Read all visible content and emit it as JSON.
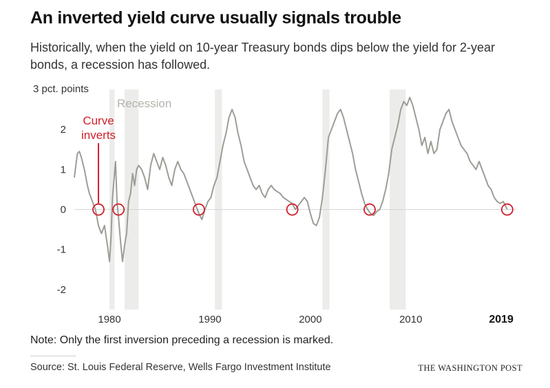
{
  "header": {
    "title": "An inverted yield curve usually signals trouble",
    "subtitle": "Historically, when the yield on 10-year Treasury bonds dips below the yield for 2-year bonds, a recession has followed."
  },
  "footer": {
    "note": "Note: Only the first inversion preceding a recession is marked.",
    "source": "Source: St. Louis Federal Reserve, Wells Fargo Investment Institute",
    "brand": "THE WASHINGTON POST"
  },
  "colors": {
    "line": "#9d9d97",
    "recession_band": "#ececea",
    "inversion_marker": "#d21f2a",
    "zero_line": "#d6d6d6",
    "recession_label": "#b3b3ad"
  },
  "chart_data": {
    "type": "line",
    "series": [
      {
        "x": [
          1976.5,
          1976.8,
          1977.0,
          1977.2,
          1977.5,
          1977.8,
          1978.0,
          1978.3,
          1978.6,
          1978.9,
          1979.2,
          1979.5,
          1979.8,
          1980.0,
          1980.15,
          1980.3,
          1980.5,
          1980.6,
          1980.75,
          1980.9,
          1981.1,
          1981.3,
          1981.5,
          1981.7,
          1981.9,
          1982.1,
          1982.3,
          1982.5,
          1982.7,
          1982.9,
          1983.2,
          1983.5,
          1983.8,
          1984.1,
          1984.4,
          1984.7,
          1985.0,
          1985.3,
          1985.6,
          1985.9,
          1986.2,
          1986.5,
          1986.8,
          1987.1,
          1987.4,
          1987.7,
          1988.0,
          1988.3,
          1988.6,
          1988.9,
          1989.2,
          1989.5,
          1989.8,
          1990.1,
          1990.4,
          1990.7,
          1991.0,
          1991.3,
          1991.6,
          1991.9,
          1992.2,
          1992.5,
          1992.8,
          1993.1,
          1993.4,
          1993.7,
          1994.0,
          1994.3,
          1994.6,
          1994.9,
          1995.2,
          1995.5,
          1995.8,
          1996.1,
          1996.4,
          1996.7,
          1997.0,
          1997.3,
          1997.6,
          1997.9,
          1998.2,
          1998.5,
          1998.8,
          1999.1,
          1999.4,
          1999.7,
          2000.0,
          2000.3,
          2000.6,
          2000.9,
          2001.2,
          2001.5,
          2001.8,
          2002.1,
          2002.4,
          2002.7,
          2003.0,
          2003.3,
          2003.6,
          2003.9,
          2004.2,
          2004.5,
          2004.8,
          2005.1,
          2005.4,
          2005.7,
          2006.0,
          2006.3,
          2006.6,
          2006.9,
          2007.2,
          2007.5,
          2007.8,
          2008.1,
          2008.4,
          2008.7,
          2009.0,
          2009.3,
          2009.6,
          2009.9,
          2010.2,
          2010.5,
          2010.8,
          2011.1,
          2011.4,
          2011.7,
          2012.0,
          2012.3,
          2012.6,
          2012.9,
          2013.2,
          2013.5,
          2013.8,
          2014.1,
          2014.4,
          2014.7,
          2015.0,
          2015.3,
          2015.6,
          2015.9,
          2016.2,
          2016.5,
          2016.8,
          2017.1,
          2017.4,
          2017.7,
          2018.0,
          2018.3,
          2018.6,
          2018.9,
          2019.2,
          2019.4,
          2019.6
        ],
        "y": [
          0.8,
          1.4,
          1.45,
          1.3,
          1.0,
          0.6,
          0.4,
          0.2,
          0.0,
          -0.4,
          -0.6,
          -0.4,
          -0.9,
          -1.3,
          -0.7,
          0.3,
          0.9,
          1.2,
          0.2,
          -0.2,
          -0.8,
          -1.3,
          -0.9,
          -0.6,
          0.2,
          0.4,
          0.9,
          0.6,
          1.0,
          1.1,
          1.0,
          0.8,
          0.5,
          1.1,
          1.4,
          1.2,
          1.0,
          1.3,
          1.1,
          0.8,
          0.6,
          1.0,
          1.2,
          1.0,
          0.9,
          0.7,
          0.5,
          0.3,
          0.1,
          -0.1,
          -0.25,
          0.0,
          0.2,
          0.3,
          0.6,
          0.8,
          1.2,
          1.6,
          1.9,
          2.3,
          2.5,
          2.3,
          1.9,
          1.6,
          1.2,
          1.0,
          0.8,
          0.6,
          0.5,
          0.6,
          0.4,
          0.3,
          0.5,
          0.6,
          0.5,
          0.45,
          0.4,
          0.3,
          0.25,
          0.2,
          0.15,
          0.0,
          0.1,
          0.2,
          0.3,
          0.2,
          -0.1,
          -0.35,
          -0.4,
          -0.2,
          0.3,
          1.0,
          1.8,
          2.0,
          2.2,
          2.4,
          2.5,
          2.3,
          2.0,
          1.7,
          1.4,
          1.0,
          0.7,
          0.4,
          0.15,
          0.0,
          -0.1,
          -0.15,
          -0.05,
          0.0,
          0.2,
          0.5,
          0.9,
          1.5,
          1.8,
          2.1,
          2.5,
          2.7,
          2.6,
          2.8,
          2.6,
          2.3,
          2.0,
          1.6,
          1.8,
          1.4,
          1.7,
          1.4,
          1.5,
          2.0,
          2.2,
          2.4,
          2.5,
          2.2,
          2.0,
          1.8,
          1.6,
          1.5,
          1.4,
          1.2,
          1.1,
          1.0,
          1.2,
          1.0,
          0.8,
          0.6,
          0.5,
          0.3,
          0.2,
          0.15,
          0.2,
          0.1,
          0.0
        ]
      }
    ],
    "ylim": [
      -2.5,
      3
    ],
    "xlim": [
      1976.5,
      2020.5
    ],
    "y_unit_label": "3 pct. points",
    "y_ticks": [
      {
        "value": 2,
        "label": "2"
      },
      {
        "value": 1,
        "label": "1"
      },
      {
        "value": 0,
        "label": "0"
      },
      {
        "value": -1,
        "label": "-1"
      },
      {
        "value": -2,
        "label": "-2"
      }
    ],
    "x_ticks": [
      {
        "value": 1980,
        "label": "1980",
        "bold": false
      },
      {
        "value": 1990,
        "label": "1990",
        "bold": false
      },
      {
        "value": 2000,
        "label": "2000",
        "bold": false
      },
      {
        "value": 2010,
        "label": "2010",
        "bold": false
      },
      {
        "value": 2019,
        "label": "2019",
        "bold": true
      }
    ],
    "recessions": [
      {
        "start": 1980.0,
        "end": 1980.5
      },
      {
        "start": 1981.5,
        "end": 1982.9
      },
      {
        "start": 1990.5,
        "end": 1991.2
      },
      {
        "start": 2001.2,
        "end": 2001.9
      },
      {
        "start": 2007.9,
        "end": 2009.5
      }
    ],
    "inversions": [
      1978.9,
      1980.9,
      1988.9,
      1998.2,
      2005.9,
      2019.6
    ],
    "annotations": {
      "recession_label": "Recession",
      "inversion_label_line1": "Curve",
      "inversion_label_line2": "inverts"
    },
    "grid": false,
    "legend": "none"
  }
}
